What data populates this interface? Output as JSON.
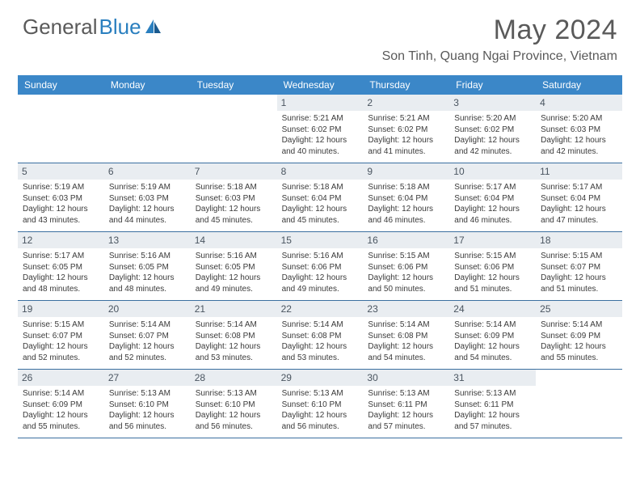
{
  "logo": {
    "text1": "General",
    "text2": "Blue"
  },
  "title": "May 2024",
  "location": "Son Tinh, Quang Ngai Province, Vietnam",
  "colors": {
    "header_bg": "#3b87c8",
    "header_text": "#ffffff",
    "daynum_bg": "#e9edf1",
    "daynum_text": "#4a5560",
    "border": "#3b6fa0",
    "title_color": "#5a5a5a",
    "logo_blue": "#2a7fbf"
  },
  "weekdays": [
    "Sunday",
    "Monday",
    "Tuesday",
    "Wednesday",
    "Thursday",
    "Friday",
    "Saturday"
  ],
  "weeks": [
    [
      {
        "n": "",
        "sunrise": "",
        "sunset": "",
        "daylight": ""
      },
      {
        "n": "",
        "sunrise": "",
        "sunset": "",
        "daylight": ""
      },
      {
        "n": "",
        "sunrise": "",
        "sunset": "",
        "daylight": ""
      },
      {
        "n": "1",
        "sunrise": "5:21 AM",
        "sunset": "6:02 PM",
        "daylight": "12 hours and 40 minutes."
      },
      {
        "n": "2",
        "sunrise": "5:21 AM",
        "sunset": "6:02 PM",
        "daylight": "12 hours and 41 minutes."
      },
      {
        "n": "3",
        "sunrise": "5:20 AM",
        "sunset": "6:02 PM",
        "daylight": "12 hours and 42 minutes."
      },
      {
        "n": "4",
        "sunrise": "5:20 AM",
        "sunset": "6:03 PM",
        "daylight": "12 hours and 42 minutes."
      }
    ],
    [
      {
        "n": "5",
        "sunrise": "5:19 AM",
        "sunset": "6:03 PM",
        "daylight": "12 hours and 43 minutes."
      },
      {
        "n": "6",
        "sunrise": "5:19 AM",
        "sunset": "6:03 PM",
        "daylight": "12 hours and 44 minutes."
      },
      {
        "n": "7",
        "sunrise": "5:18 AM",
        "sunset": "6:03 PM",
        "daylight": "12 hours and 45 minutes."
      },
      {
        "n": "8",
        "sunrise": "5:18 AM",
        "sunset": "6:04 PM",
        "daylight": "12 hours and 45 minutes."
      },
      {
        "n": "9",
        "sunrise": "5:18 AM",
        "sunset": "6:04 PM",
        "daylight": "12 hours and 46 minutes."
      },
      {
        "n": "10",
        "sunrise": "5:17 AM",
        "sunset": "6:04 PM",
        "daylight": "12 hours and 46 minutes."
      },
      {
        "n": "11",
        "sunrise": "5:17 AM",
        "sunset": "6:04 PM",
        "daylight": "12 hours and 47 minutes."
      }
    ],
    [
      {
        "n": "12",
        "sunrise": "5:17 AM",
        "sunset": "6:05 PM",
        "daylight": "12 hours and 48 minutes."
      },
      {
        "n": "13",
        "sunrise": "5:16 AM",
        "sunset": "6:05 PM",
        "daylight": "12 hours and 48 minutes."
      },
      {
        "n": "14",
        "sunrise": "5:16 AM",
        "sunset": "6:05 PM",
        "daylight": "12 hours and 49 minutes."
      },
      {
        "n": "15",
        "sunrise": "5:16 AM",
        "sunset": "6:06 PM",
        "daylight": "12 hours and 49 minutes."
      },
      {
        "n": "16",
        "sunrise": "5:15 AM",
        "sunset": "6:06 PM",
        "daylight": "12 hours and 50 minutes."
      },
      {
        "n": "17",
        "sunrise": "5:15 AM",
        "sunset": "6:06 PM",
        "daylight": "12 hours and 51 minutes."
      },
      {
        "n": "18",
        "sunrise": "5:15 AM",
        "sunset": "6:07 PM",
        "daylight": "12 hours and 51 minutes."
      }
    ],
    [
      {
        "n": "19",
        "sunrise": "5:15 AM",
        "sunset": "6:07 PM",
        "daylight": "12 hours and 52 minutes."
      },
      {
        "n": "20",
        "sunrise": "5:14 AM",
        "sunset": "6:07 PM",
        "daylight": "12 hours and 52 minutes."
      },
      {
        "n": "21",
        "sunrise": "5:14 AM",
        "sunset": "6:08 PM",
        "daylight": "12 hours and 53 minutes."
      },
      {
        "n": "22",
        "sunrise": "5:14 AM",
        "sunset": "6:08 PM",
        "daylight": "12 hours and 53 minutes."
      },
      {
        "n": "23",
        "sunrise": "5:14 AM",
        "sunset": "6:08 PM",
        "daylight": "12 hours and 54 minutes."
      },
      {
        "n": "24",
        "sunrise": "5:14 AM",
        "sunset": "6:09 PM",
        "daylight": "12 hours and 54 minutes."
      },
      {
        "n": "25",
        "sunrise": "5:14 AM",
        "sunset": "6:09 PM",
        "daylight": "12 hours and 55 minutes."
      }
    ],
    [
      {
        "n": "26",
        "sunrise": "5:14 AM",
        "sunset": "6:09 PM",
        "daylight": "12 hours and 55 minutes."
      },
      {
        "n": "27",
        "sunrise": "5:13 AM",
        "sunset": "6:10 PM",
        "daylight": "12 hours and 56 minutes."
      },
      {
        "n": "28",
        "sunrise": "5:13 AM",
        "sunset": "6:10 PM",
        "daylight": "12 hours and 56 minutes."
      },
      {
        "n": "29",
        "sunrise": "5:13 AM",
        "sunset": "6:10 PM",
        "daylight": "12 hours and 56 minutes."
      },
      {
        "n": "30",
        "sunrise": "5:13 AM",
        "sunset": "6:11 PM",
        "daylight": "12 hours and 57 minutes."
      },
      {
        "n": "31",
        "sunrise": "5:13 AM",
        "sunset": "6:11 PM",
        "daylight": "12 hours and 57 minutes."
      },
      {
        "n": "",
        "sunrise": "",
        "sunset": "",
        "daylight": ""
      }
    ]
  ],
  "labels": {
    "sunrise": "Sunrise:",
    "sunset": "Sunset:",
    "daylight": "Daylight:"
  }
}
